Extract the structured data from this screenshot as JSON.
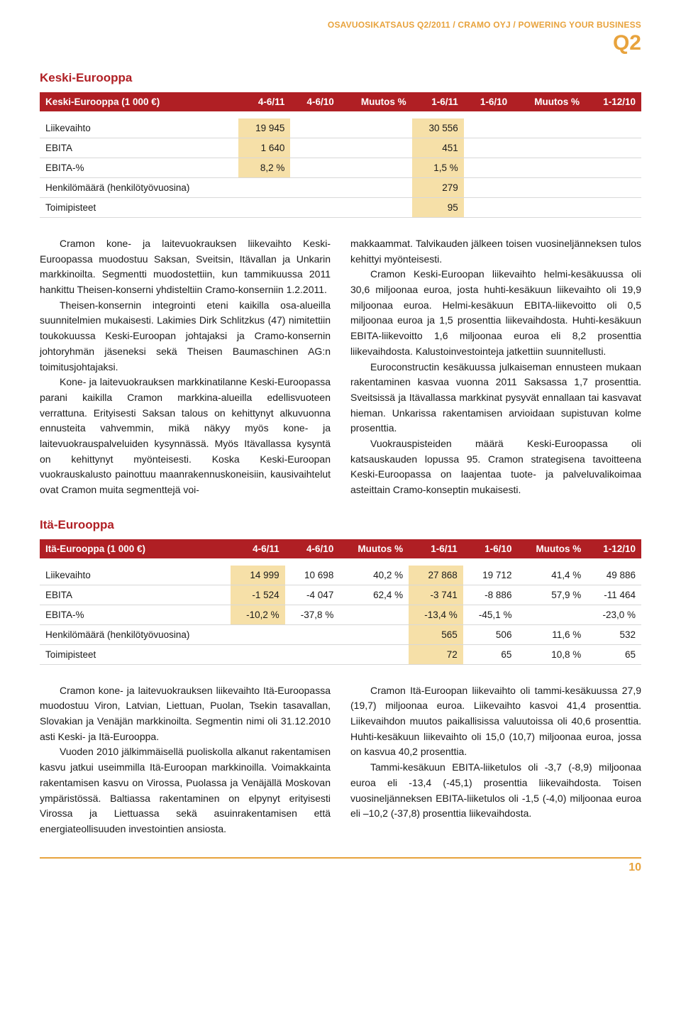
{
  "header": {
    "line": "OSAVUOSIKATSAUS Q2/2011 / CRAMO OYJ / POWERING YOUR BUSINESS",
    "q": "Q2",
    "color": "#e8a33d"
  },
  "section1": {
    "title": "Keski-Eurooppa",
    "table": {
      "columns": [
        "Keski-Eurooppa (1 000 €)",
        "4-6/11",
        "4-6/10",
        "Muutos %",
        "1-6/11",
        "1-6/10",
        "Muutos %",
        "1-12/10"
      ],
      "rows": [
        {
          "label": "Liikevaihto",
          "c1": "19 945",
          "c4": "30 556",
          "hl": [
            1,
            4
          ]
        },
        {
          "label": "EBITA",
          "c1": "1 640",
          "c4": "451",
          "hl": [
            1,
            4
          ]
        },
        {
          "label": "EBITA-%",
          "c1": "8,2 %",
          "c4": "1,5 %",
          "hl": [
            1,
            4
          ]
        },
        {
          "label": "Henkilömäärä (henkilötyövuosina)",
          "c4": "279",
          "hl": [
            4
          ]
        },
        {
          "label": "Toimipisteet",
          "c4": "95",
          "hl": [
            4
          ]
        }
      ]
    },
    "col_left": [
      "Cramon kone- ja laitevuokrauksen liikevaihto Keski-Euroopassa muodostuu Saksan, Sveitsin, Itävallan ja Unkarin markkinoilta. Segmentti muodostettiin, kun tammikuussa 2011 hankittu Theisen-konserni yhdisteltiin Cramo-konserniin 1.2.2011.",
      "Theisen-konsernin integrointi eteni kaikilla osa-alueilla suunnitelmien mukaisesti. Lakimies Dirk Schlitzkus (47) nimitettiin toukokuussa Keski-Euroopan johtajaksi ja Cramo-konsernin johtoryhmän jäseneksi sekä Theisen Baumaschinen AG:n toimitusjohtajaksi.",
      "Kone- ja laitevuokrauksen markkinatilanne Keski-Euroopassa parani kaikilla Cramon markkina-alueilla edellisvuoteen verrattuna. Erityisesti Saksan talous on kehittynyt alkuvuonna ennusteita vahvemmin, mikä näkyy myös kone- ja laitevuokrauspalveluiden kysynnässä. Myös Itävallassa kysyntä on kehittynyt myönteisesti. Koska Keski-Euroopan vuokrauskalusto painottuu maanrakennuskoneisiin, kausivaihtelut ovat Cramon muita segmenttejä voi-"
    ],
    "col_right": [
      "makkaammat. Talvikauden jälkeen toisen vuosineljänneksen tulos kehittyi myönteisesti.",
      "Cramon Keski-Euroopan liikevaihto helmi-kesäkuussa oli 30,6 miljoonaa euroa, josta huhti-kesäkuun liikevaihto oli 19,9 miljoonaa euroa. Helmi-kesäkuun EBITA-liikevoitto oli 0,5 miljoonaa euroa ja 1,5 prosenttia liikevaihdosta. Huhti-kesäkuun EBITA-liikevoitto 1,6 miljoonaa euroa eli 8,2 prosenttia liikevaihdosta. Kalustoinvestointeja jatkettiin suunnitellusti.",
      "Euroconstructin kesäkuussa julkaiseman ennusteen mukaan rakentaminen kasvaa vuonna 2011 Saksassa 1,7 prosenttia. Sveitsissä ja Itävallassa markkinat pysyvät ennallaan tai kasvavat hieman. Unkarissa rakentamisen arvioidaan supistuvan kolme prosenttia.",
      "Vuokrauspisteiden määrä Keski-Euroopassa oli katsauskauden lopussa 95. Cramon strategisena tavoitteena Keski-Euroopassa on laajentaa tuote- ja palveluvalikoimaa asteittain Cramo-konseptin mukaisesti."
    ]
  },
  "section2": {
    "title": "Itä-Eurooppa",
    "table": {
      "columns": [
        "Itä-Eurooppa (1 000 €)",
        "4-6/11",
        "4-6/10",
        "Muutos %",
        "1-6/11",
        "1-6/10",
        "Muutos %",
        "1-12/10"
      ],
      "rows": [
        {
          "label": "Liikevaihto",
          "c1": "14 999",
          "c2": "10 698",
          "c3": "40,2 %",
          "c4": "27 868",
          "c5": "19 712",
          "c6": "41,4 %",
          "c7": "49 886",
          "hl": [
            1,
            4
          ]
        },
        {
          "label": "EBITA",
          "c1": "-1 524",
          "c2": "-4 047",
          "c3": "62,4 %",
          "c4": "-3 741",
          "c5": "-8 886",
          "c6": "57,9 %",
          "c7": "-11 464",
          "hl": [
            1,
            4
          ]
        },
        {
          "label": "EBITA-%",
          "c1": "-10,2 %",
          "c2": "-37,8 %",
          "c3": "",
          "c4": "-13,4 %",
          "c5": "-45,1 %",
          "c6": "",
          "c7": "-23,0 %",
          "hl": [
            1,
            4
          ]
        },
        {
          "label": "Henkilömäärä (henkilötyövuosina)",
          "c1": "",
          "c2": "",
          "c3": "",
          "c4": "565",
          "c5": "506",
          "c6": "11,6 %",
          "c7": "532",
          "hl": [
            4
          ]
        },
        {
          "label": "Toimipisteet",
          "c1": "",
          "c2": "",
          "c3": "",
          "c4": "72",
          "c5": "65",
          "c6": "10,8 %",
          "c7": "65",
          "hl": [
            4
          ]
        }
      ]
    },
    "col_left": [
      "Cramon kone- ja laitevuokrauksen liikevaihto Itä-Euroopassa muodostuu Viron, Latvian, Liettuan, Puolan, Tsekin tasavallan, Slovakian ja Venäjän markkinoilta. Segmentin nimi oli 31.12.2010 asti Keski- ja Itä-Eurooppa.",
      "Vuoden 2010 jälkimmäisellä puoliskolla alkanut rakentamisen kasvu jatkui useimmilla Itä-Euroopan markkinoilla. Voimakkainta rakentamisen kasvu on Virossa, Puolassa ja Venäjällä Moskovan ympäristössä. Baltiassa rakentaminen on elpynyt erityisesti Virossa ja Liettuassa sekä asuinrakentamisen että energiateollisuuden investointien ansiosta."
    ],
    "col_right": [
      "Cramon Itä-Euroopan liikevaihto oli tammi-kesäkuussa 27,9 (19,7) miljoonaa euroa. Liikevaihto kasvoi 41,4 prosenttia. Liikevaihdon muutos paikallisissa valuutoissa oli 40,6 prosenttia. Huhti-kesäkuun liikevaihto oli 15,0 (10,7) miljoonaa euroa, jossa on kasvua 40,2 prosenttia.",
      "Tammi-kesäkuun EBITA-liiketulos oli -3,7 (-8,9) miljoonaa euroa eli -13,4 (-45,1) prosenttia liikevaihdosta. Toisen vuosineljänneksen EBITA-liiketulos oli -1,5 (-4,0) miljoonaa euroa eli –10,2 (-37,8) prosenttia liikevaihdosta."
    ]
  },
  "footer": {
    "page": "10"
  },
  "style": {
    "accent": "#b01f24",
    "highlight_bg": "#f6e0a8",
    "header_color": "#e8a33d",
    "row_border": "#d9d9d9",
    "body_fontsize": 14,
    "table_fontsize": 13.5
  }
}
